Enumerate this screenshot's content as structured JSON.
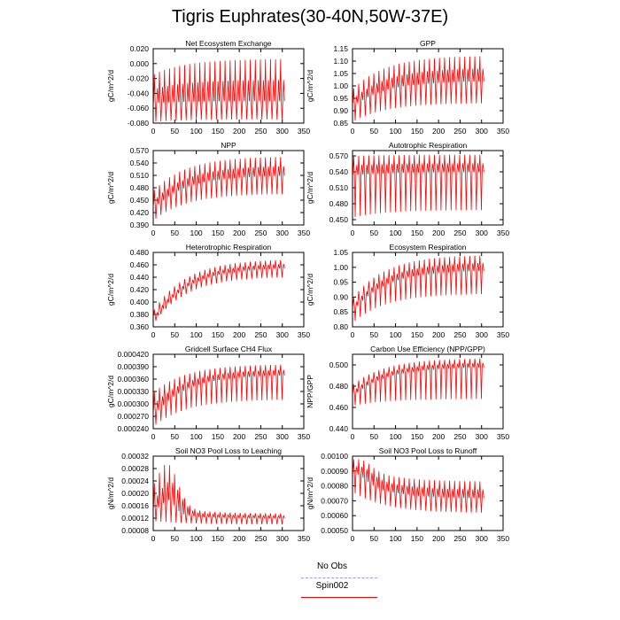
{
  "figure": {
    "title": "Tigris Euphrates(30-40N,50W-37E)"
  },
  "legend": {
    "items": [
      {
        "label": "No Obs",
        "color": "#9999ff",
        "dash": true
      },
      {
        "label": "Spin002",
        "color": "#ff0000",
        "dash": false
      }
    ]
  },
  "chart_data": [
    {
      "type": "line",
      "title": "Net Ecosystem Exchange",
      "ylabel": "gC/m^2/d",
      "xlim": [
        0,
        350
      ],
      "xticks": [
        0,
        50,
        100,
        150,
        200,
        250,
        300,
        350
      ],
      "ylim": [
        -0.08,
        0.02
      ],
      "yticks": [
        "0.020",
        "0.000",
        "-0.020",
        "-0.040",
        "-0.060",
        "-0.080"
      ],
      "series": [
        {
          "color": "#ff0000",
          "x_range": [
            1,
            306
          ],
          "band_low": [
            -0.078,
            -0.075
          ],
          "band_high": [
            -0.014,
            0.006
          ],
          "mean": [
            -0.052,
            -0.05
          ]
        }
      ]
    },
    {
      "type": "line",
      "title": "GPP",
      "ylabel": "gC/m^2/d",
      "xlim": [
        0,
        350
      ],
      "xticks": [
        0,
        50,
        100,
        150,
        200,
        250,
        300,
        350
      ],
      "ylim": [
        0.85,
        1.15
      ],
      "yticks": [
        "1.15",
        "1.10",
        "1.05",
        "1.00",
        "0.95",
        "0.90",
        "0.85"
      ],
      "series": [
        {
          "color": "#ff0000",
          "x_range": [
            1,
            306
          ],
          "band_low": [
            0.86,
            0.93
          ],
          "band_high": [
            0.99,
            1.12
          ],
          "mean": [
            0.93,
            1.02
          ]
        }
      ]
    },
    {
      "type": "line",
      "title": "NPP",
      "ylabel": "gC/m^2/d",
      "xlim": [
        0,
        350
      ],
      "xticks": [
        0,
        50,
        100,
        150,
        200,
        250,
        300,
        350
      ],
      "ylim": [
        0.39,
        0.57
      ],
      "yticks": [
        "0.570",
        "0.540",
        "0.510",
        "0.480",
        "0.450",
        "0.420",
        "0.390"
      ],
      "series": [
        {
          "color": "#ff0000",
          "x_range": [
            1,
            306
          ],
          "band_low": [
            0.405,
            0.465
          ],
          "band_high": [
            0.475,
            0.555
          ],
          "mean": [
            0.44,
            0.51
          ]
        }
      ]
    },
    {
      "type": "line",
      "title": "Autotrophic Respiration",
      "ylabel": "gC/m^2/d",
      "xlim": [
        0,
        350
      ],
      "xticks": [
        0,
        50,
        100,
        150,
        200,
        250,
        300,
        350
      ],
      "ylim": [
        0.44,
        0.58
      ],
      "yticks": [
        "0.570",
        "0.540",
        "0.510",
        "0.480",
        "0.450"
      ],
      "series": [
        {
          "color": "#ff0000",
          "x_range": [
            1,
            306
          ],
          "band_low": [
            0.455,
            0.468
          ],
          "band_high": [
            0.57,
            0.572
          ],
          "mean": [
            0.535,
            0.54
          ]
        }
      ]
    },
    {
      "type": "line",
      "title": "Heterotrophic Respiration",
      "ylabel": "gC/m^2/d",
      "xlim": [
        0,
        350
      ],
      "xticks": [
        0,
        50,
        100,
        150,
        200,
        250,
        300,
        350
      ],
      "ylim": [
        0.36,
        0.48
      ],
      "yticks": [
        "0.480",
        "0.460",
        "0.440",
        "0.420",
        "0.400",
        "0.380",
        "0.360"
      ],
      "series": [
        {
          "color": "#ff0000",
          "x_range": [
            1,
            306
          ],
          "band_low": [
            0.37,
            0.44
          ],
          "band_high": [
            0.388,
            0.468
          ],
          "mean": [
            0.378,
            0.455
          ]
        }
      ]
    },
    {
      "type": "line",
      "title": "Ecosystem Respiration",
      "ylabel": "gC/m^2/d",
      "xlim": [
        0,
        350
      ],
      "xticks": [
        0,
        50,
        100,
        150,
        200,
        250,
        300,
        350
      ],
      "ylim": [
        0.8,
        1.05
      ],
      "yticks": [
        "1.05",
        "1.00",
        "0.95",
        "0.90",
        "0.85",
        "0.80"
      ],
      "series": [
        {
          "color": "#ff0000",
          "x_range": [
            1,
            306
          ],
          "band_low": [
            0.82,
            0.91
          ],
          "band_high": [
            0.9,
            1.04
          ],
          "mean": [
            0.87,
            0.99
          ]
        }
      ]
    },
    {
      "type": "line",
      "title": "Gridcell Surface CH4 Flux",
      "ylabel": "gC/m^2/d",
      "xlim": [
        0,
        350
      ],
      "xticks": [
        0,
        50,
        100,
        150,
        200,
        250,
        300,
        350
      ],
      "ylim": [
        0.00024,
        0.00042
      ],
      "yticks": [
        "0.000420",
        "0.000390",
        "0.000360",
        "0.000330",
        "0.000300",
        "0.000270",
        "0.000240"
      ],
      "series": [
        {
          "color": "#ff0000",
          "x_range": [
            1,
            306
          ],
          "band_low": [
            0.00025,
            0.00031
          ],
          "band_high": [
            0.00033,
            0.000395
          ],
          "mean": [
            0.000285,
            0.00037
          ]
        }
      ]
    },
    {
      "type": "line",
      "title": "Carbon Use Efficiency (NPP/GPP)",
      "ylabel": "NPP/GPP",
      "xlim": [
        0,
        350
      ],
      "xticks": [
        0,
        50,
        100,
        150,
        200,
        250,
        300,
        350
      ],
      "ylim": [
        0.44,
        0.51
      ],
      "yticks": [
        "0.500",
        "0.480",
        "0.460",
        "0.440"
      ],
      "series": [
        {
          "color": "#ff0000",
          "x_range": [
            1,
            306
          ],
          "band_low": [
            0.462,
            0.468
          ],
          "band_high": [
            0.482,
            0.506
          ],
          "mean": [
            0.474,
            0.498
          ]
        }
      ]
    },
    {
      "type": "line",
      "title": "Soil NO3 Pool Loss to Leaching",
      "ylabel": "gN/m^2/d",
      "xlim": [
        0,
        350
      ],
      "xticks": [
        0,
        50,
        100,
        150,
        200,
        250,
        300,
        350
      ],
      "ylim": [
        8e-05,
        0.00032
      ],
      "yticks": [
        "0.00032",
        "0.00028",
        "0.00024",
        "0.00020",
        "0.00016",
        "0.00012",
        "0.00008"
      ],
      "series": [
        {
          "color": "#ff0000",
          "x_range": [
            1,
            306
          ],
          "peak_x": 30,
          "band_low": [
            0.00011,
            0.0001
          ],
          "band_high": [
            0.00017,
            0.000135
          ],
          "peak_high": 0.000295,
          "mean": [
            0.00014,
            0.00012
          ]
        }
      ]
    },
    {
      "type": "line",
      "title": "Soil NO3 Pool Loss to Runoff",
      "ylabel": "gN/m^2/d",
      "xlim": [
        0,
        350
      ],
      "xticks": [
        0,
        50,
        100,
        150,
        200,
        250,
        300,
        350
      ],
      "ylim": [
        0.0005,
        0.001
      ],
      "yticks": [
        "0.00100",
        "0.00090",
        "0.00080",
        "0.00070",
        "0.00060",
        "0.00050"
      ],
      "series": [
        {
          "color": "#ff0000",
          "x_range": [
            1,
            306
          ],
          "peak_x": 10,
          "band_low": [
            0.00075,
            0.00062
          ],
          "band_high": [
            0.00095,
            0.00083
          ],
          "peak_high": 0.00098,
          "mean": [
            0.00085,
            0.00072
          ]
        }
      ]
    }
  ]
}
